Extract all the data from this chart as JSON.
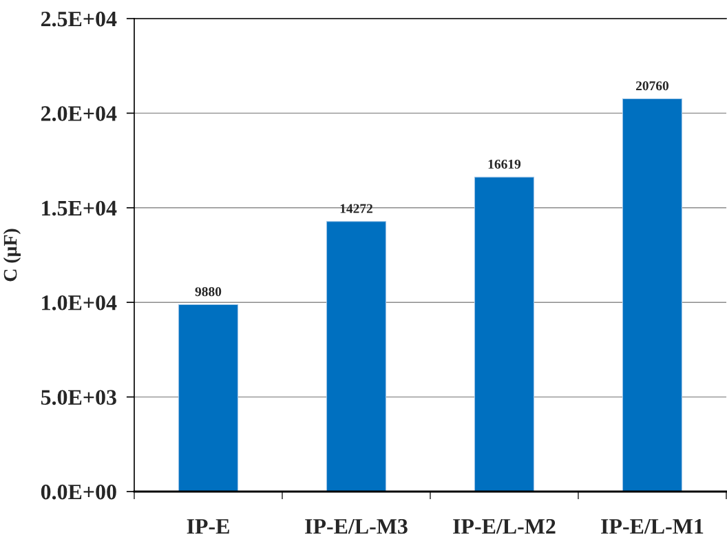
{
  "chart_data": {
    "type": "bar",
    "ylabel": "C (µF)",
    "categories": [
      "IP-E",
      "IP-E/L-M3",
      "IP-E/L-M2",
      "IP-E/L-M1"
    ],
    "values": [
      9880,
      14272,
      16619,
      20760
    ],
    "color": "#0070c0",
    "ylim": [
      0,
      25000
    ],
    "yticks": [
      {
        "value": 0,
        "label": "0.0E+00"
      },
      {
        "value": 5000,
        "label": "5.0E+03"
      },
      {
        "value": 10000,
        "label": "1.0E+04"
      },
      {
        "value": 15000,
        "label": "1.5E+04"
      },
      {
        "value": 20000,
        "label": "2.0E+04"
      },
      {
        "value": 25000,
        "label": "2.5E+04"
      }
    ],
    "grid": "y",
    "data_labels": true
  }
}
